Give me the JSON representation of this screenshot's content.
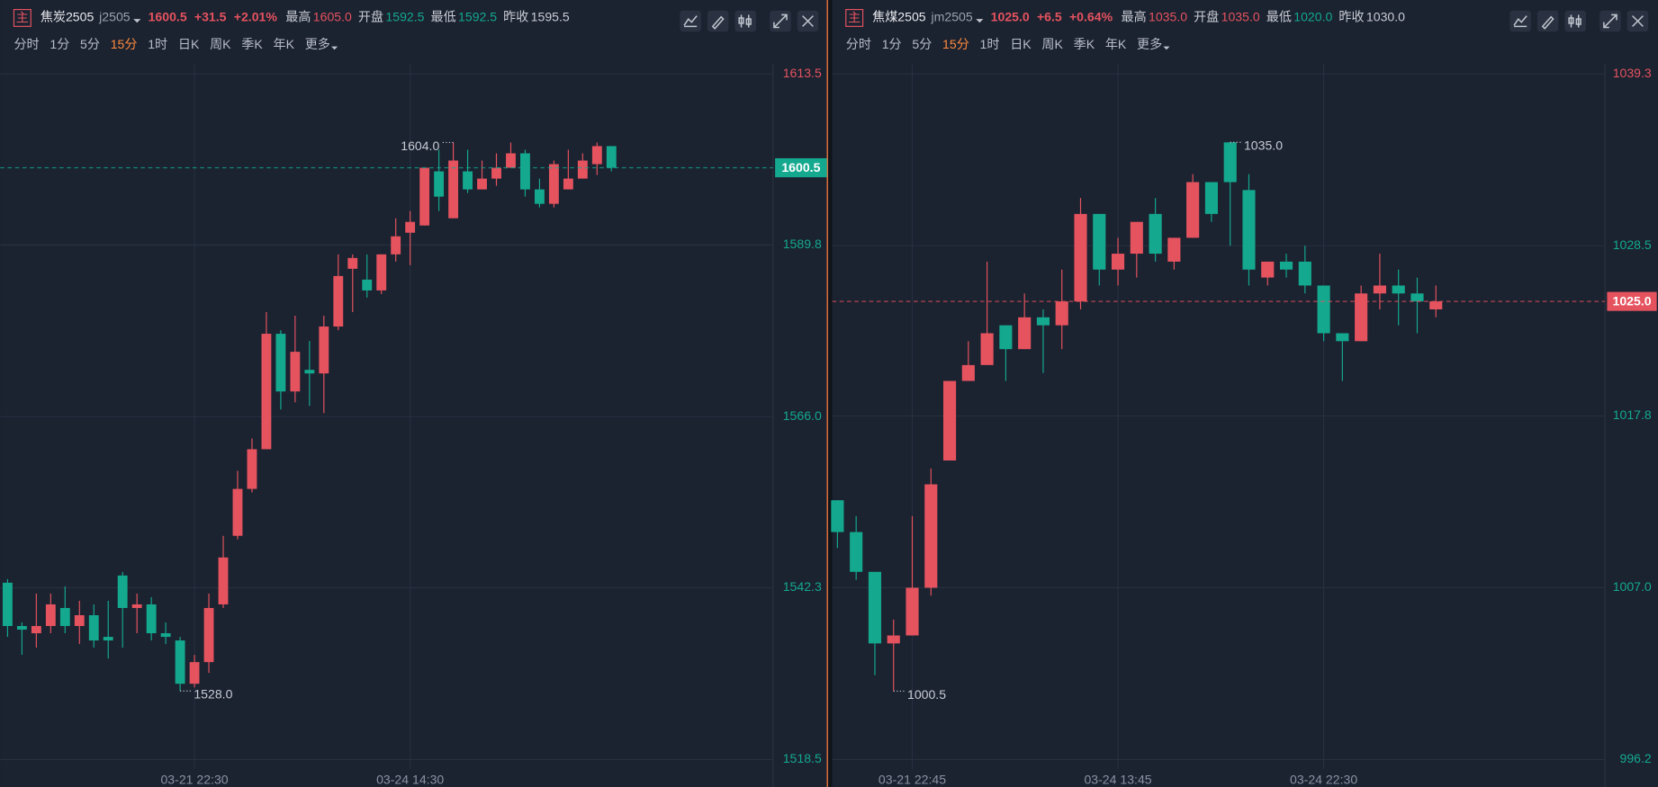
{
  "panels": [
    {
      "icon": "主",
      "name": "焦炭2505",
      "code": "j2505",
      "price": "1600.5",
      "change": "+31.5",
      "change_pct": "+2.01%",
      "color": "#e5535f",
      "stats": [
        {
          "label": "最高",
          "value": "1605.0",
          "color": "#e5535f"
        },
        {
          "label": "开盘",
          "value": "1592.5",
          "color": "#14a98f"
        },
        {
          "label": "最低",
          "value": "1592.5",
          "color": "#14a98f"
        },
        {
          "label": "昨收",
          "value": "1595.5",
          "color": "#c8ccd4"
        }
      ],
      "periods": [
        "分时",
        "1分",
        "5分",
        "15分",
        "1时",
        "日K",
        "周K",
        "季K",
        "年K",
        "更多"
      ],
      "active_period": 3
    },
    {
      "icon": "主",
      "name": "焦煤2505",
      "code": "jm2505",
      "price": "1025.0",
      "change": "+6.5",
      "change_pct": "+0.64%",
      "color": "#e5535f",
      "stats": [
        {
          "label": "最高",
          "value": "1035.0",
          "color": "#e5535f"
        },
        {
          "label": "开盘",
          "value": "1035.0",
          "color": "#e5535f"
        },
        {
          "label": "最低",
          "value": "1020.0",
          "color": "#14a98f"
        },
        {
          "label": "昨收",
          "value": "1030.0",
          "color": "#c8ccd4"
        }
      ],
      "periods": [
        "分时",
        "1分",
        "5分",
        "15分",
        "1时",
        "日K",
        "周K",
        "季K",
        "年K",
        "更多"
      ],
      "active_period": 3
    }
  ],
  "chart_data": [
    {
      "type": "candlestick",
      "categories": [
        null,
        null,
        null,
        null,
        null,
        null,
        null,
        null,
        null,
        null,
        null,
        null,
        null,
        "03-21 22:30",
        null,
        null,
        null,
        null,
        null,
        null,
        null,
        null,
        null,
        null,
        null,
        null,
        null,
        null,
        "03-24 14:30",
        null,
        null,
        null,
        null,
        null,
        null,
        null,
        null,
        null,
        null,
        null,
        null,
        null,
        null
      ],
      "open": [
        1543.0,
        1537.0,
        1536.0,
        1537.0,
        1539.5,
        1537.0,
        1538.5,
        1535.5,
        1544.0,
        1539.5,
        1540.0,
        1536.0,
        1535.0,
        1529.0,
        1532.0,
        1540.0,
        1549.5,
        1556.0,
        1561.5,
        1577.5,
        1569.5,
        1572.5,
        1572.0,
        1578.5,
        1586.5,
        1585.0,
        1583.5,
        1588.5,
        1591.5,
        1592.5,
        1600.0,
        1593.5,
        1600.0,
        1597.5,
        1599.0,
        1600.5,
        1602.5,
        1597.5,
        1595.5,
        1597.5,
        1599.0,
        1601.0,
        1603.5
      ],
      "high": [
        1543.5,
        1537.5,
        1541.5,
        1541.5,
        1542.5,
        1540.5,
        1540.0,
        1540.5,
        1544.5,
        1541.5,
        1541.0,
        1537.5,
        1535.5,
        1533.0,
        1541.5,
        1549.5,
        1558.5,
        1563.0,
        1580.5,
        1578.0,
        1580.0,
        1576.5,
        1580.0,
        1588.5,
        1588.5,
        1588.5,
        1588.5,
        1593.5,
        1594.5,
        1600.5,
        1603.0,
        1604.0,
        1603.0,
        1601.5,
        1602.5,
        1604.0,
        1603.0,
        1599.0,
        1601.5,
        1603.0,
        1602.5,
        1604.0,
        1603.5
      ],
      "low": [
        1535.5,
        1533.0,
        1534.0,
        1536.0,
        1536.0,
        1534.5,
        1534.0,
        1532.5,
        1534.0,
        1536.0,
        1535.0,
        1534.5,
        1528.0,
        1528.5,
        1530.5,
        1539.5,
        1549.0,
        1555.5,
        1561.5,
        1567.0,
        1568.0,
        1567.5,
        1566.5,
        1578.0,
        1580.5,
        1582.5,
        1583.0,
        1587.5,
        1587.0,
        1592.5,
        1594.5,
        1593.5,
        1597.0,
        1597.5,
        1598.0,
        1600.5,
        1596.5,
        1595.0,
        1595.0,
        1597.5,
        1599.0,
        1599.5,
        1600.0
      ],
      "close": [
        1537.0,
        1536.5,
        1537.0,
        1540.0,
        1537.0,
        1538.5,
        1535.0,
        1535.0,
        1539.5,
        1540.0,
        1536.0,
        1535.5,
        1529.0,
        1532.0,
        1539.5,
        1546.5,
        1556.0,
        1561.5,
        1577.5,
        1569.5,
        1575.0,
        1572.0,
        1578.5,
        1585.5,
        1588.0,
        1583.5,
        1588.5,
        1591.0,
        1593.0,
        1600.5,
        1596.5,
        1601.5,
        1597.5,
        1599.0,
        1600.5,
        1602.5,
        1597.5,
        1595.5,
        1601.0,
        1599.0,
        1601.5,
        1603.5,
        1600.5
      ],
      "up_color": "#e5535f",
      "down_color": "#14a98f",
      "ylim": [
        1518.5,
        1613.5
      ],
      "yticks": [
        1613.5,
        1589.8,
        {
          "value": 1566,
          "label": "1566.0"
        },
        1542.3,
        1518.5
      ],
      "last_price": 1600.5,
      "high_label": {
        "value": 1604,
        "label": "1604.0"
      },
      "low_label": {
        "value": 1528,
        "label": "1528.0"
      },
      "grid": true
    },
    {
      "type": "candlestick",
      "categories": [
        null,
        null,
        null,
        null,
        "03-21 22:45",
        null,
        null,
        null,
        null,
        null,
        null,
        null,
        null,
        null,
        null,
        "03-24 13:45",
        null,
        null,
        null,
        null,
        null,
        null,
        null,
        null,
        null,
        null,
        "03-24 22:30",
        null,
        null,
        null,
        null,
        null,
        null
      ],
      "open": [
        1012.5,
        1010.5,
        1008.0,
        1003.5,
        1004.0,
        1007.0,
        1015.0,
        1020.0,
        1021.0,
        1023.5,
        1022.0,
        1024.0,
        1023.5,
        1025.0,
        1030.5,
        1027.0,
        1028.0,
        1030.5,
        1027.5,
        1029.0,
        1032.5,
        1035.0,
        1032.0,
        1026.5,
        1027.5,
        1027.5,
        1026.0,
        1023.0,
        1022.5,
        1025.5,
        1026.0,
        1025.5,
        1024.5
      ],
      "high": [
        1012.5,
        1011.5,
        1008.0,
        1005.0,
        1011.5,
        1014.5,
        1020.0,
        1022.5,
        1027.5,
        1023.5,
        1025.5,
        1024.5,
        1027.0,
        1031.5,
        1030.5,
        1029.0,
        1030.0,
        1031.5,
        1029.0,
        1033.0,
        1032.5,
        1035.0,
        1033.0,
        1027.5,
        1028.0,
        1028.5,
        1026.0,
        1023.0,
        1026.0,
        1028.0,
        1027.0,
        1026.5,
        1026.0
      ],
      "low": [
        1009.5,
        1007.5,
        1001.5,
        1000.5,
        1004.0,
        1006.5,
        1015.0,
        1020.0,
        1021.0,
        1020.0,
        1022.0,
        1020.5,
        1022.0,
        1024.5,
        1026.0,
        1026.0,
        1026.5,
        1027.5,
        1027.0,
        1029.0,
        1030.0,
        1028.5,
        1026.0,
        1026.0,
        1026.5,
        1025.5,
        1022.5,
        1020.0,
        1022.5,
        1024.5,
        1023.5,
        1023.0,
        1024.0
      ],
      "close": [
        1010.5,
        1008.0,
        1003.5,
        1004.0,
        1007.0,
        1013.5,
        1020.0,
        1021.0,
        1023.0,
        1022.0,
        1024.0,
        1023.5,
        1025.0,
        1030.5,
        1027.0,
        1028.0,
        1030.0,
        1028.0,
        1029.0,
        1032.5,
        1030.5,
        1032.5,
        1027.0,
        1027.5,
        1027.0,
        1026.0,
        1023.0,
        1022.5,
        1025.5,
        1026.0,
        1025.5,
        1025.0,
        1025.0
      ],
      "up_color": "#e5535f",
      "down_color": "#14a98f",
      "ylim": [
        996.2,
        1039.3
      ],
      "yticks": [
        1039.3,
        1028.5,
        1017.8,
        {
          "value": 1007,
          "label": "1007.0"
        },
        996.2
      ],
      "last_price": {
        "value": 1025,
        "label": "1025.0"
      },
      "high_label": {
        "value": 1035,
        "label": "1035.0"
      },
      "low_label": 1000.5,
      "grid": true
    }
  ]
}
